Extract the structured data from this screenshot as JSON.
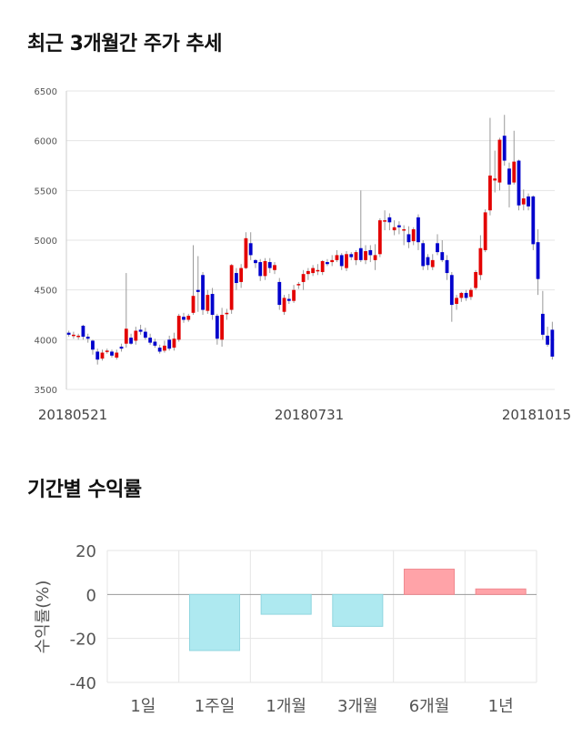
{
  "titles": {
    "candle": "최근 3개월간 주가 추세",
    "returns": "기간별 수익률"
  },
  "colors": {
    "up": "#e30000",
    "down": "#0000cc",
    "grid": "#e5e5e5",
    "positive_bar": "#ffa3a8",
    "negative_bar": "#aee9f0"
  },
  "chart_data": [
    {
      "type": "candlestick",
      "title": "최근 3개월간 주가 추세",
      "ylim": [
        3500,
        6500
      ],
      "yticks": [
        3500,
        4000,
        4500,
        5000,
        5500,
        6000,
        6500
      ],
      "date_labels": [
        "20180521",
        "20180731",
        "20181015"
      ],
      "grid": true,
      "candles": [
        [
          4070,
          4050,
          4090,
          4030
        ],
        [
          4040,
          4050,
          4080,
          4010
        ],
        [
          4030,
          4040,
          4060,
          4000
        ],
        [
          4140,
          4030,
          4150,
          4000
        ],
        [
          4030,
          4010,
          4060,
          3970
        ],
        [
          3990,
          3900,
          4000,
          3850
        ],
        [
          3880,
          3800,
          3910,
          3750
        ],
        [
          3810,
          3870,
          3900,
          3790
        ],
        [
          3880,
          3890,
          3910,
          3860
        ],
        [
          3880,
          3840,
          3900,
          3820
        ],
        [
          3820,
          3870,
          3900,
          3800
        ],
        [
          3930,
          3910,
          3960,
          3880
        ],
        [
          3960,
          4110,
          4670,
          3920
        ],
        [
          4020,
          3960,
          4060,
          3950
        ],
        [
          3990,
          4090,
          4130,
          3950
        ],
        [
          4100,
          4080,
          4150,
          4050
        ],
        [
          4080,
          4020,
          4120,
          4000
        ],
        [
          4020,
          3970,
          4060,
          3950
        ],
        [
          3980,
          3940,
          4010,
          3920
        ],
        [
          3920,
          3880,
          3950,
          3860
        ],
        [
          3890,
          3940,
          3990,
          3870
        ],
        [
          4000,
          3910,
          4040,
          3890
        ],
        [
          3920,
          4010,
          4070,
          3890
        ],
        [
          4000,
          4240,
          4260,
          3980
        ],
        [
          4230,
          4200,
          4270,
          4170
        ],
        [
          4200,
          4240,
          4260,
          4180
        ],
        [
          4270,
          4440,
          4950,
          4250
        ],
        [
          4500,
          4480,
          4840,
          4280
        ],
        [
          4650,
          4300,
          4680,
          4250
        ],
        [
          4290,
          4450,
          4500,
          4260
        ],
        [
          4460,
          4250,
          4520,
          4200
        ],
        [
          4240,
          4010,
          4260,
          3950
        ],
        [
          4000,
          4250,
          4320,
          3930
        ],
        [
          4260,
          4270,
          4310,
          4200
        ],
        [
          4300,
          4750,
          4760,
          4260
        ],
        [
          4670,
          4570,
          4720,
          4500
        ],
        [
          4580,
          4720,
          4760,
          4520
        ],
        [
          4720,
          5020,
          5080,
          4710
        ],
        [
          4970,
          4850,
          5080,
          4800
        ],
        [
          4800,
          4770,
          4810,
          4720
        ],
        [
          4780,
          4640,
          4810,
          4590
        ],
        [
          4640,
          4790,
          4820,
          4600
        ],
        [
          4780,
          4720,
          4820,
          4670
        ],
        [
          4700,
          4750,
          4780,
          4660
        ],
        [
          4580,
          4350,
          4620,
          4300
        ],
        [
          4280,
          4420,
          4450,
          4250
        ],
        [
          4410,
          4390,
          4460,
          4360
        ],
        [
          4390,
          4500,
          4550,
          4370
        ],
        [
          4550,
          4560,
          4580,
          4510
        ],
        [
          4580,
          4660,
          4700,
          4500
        ],
        [
          4660,
          4690,
          4720,
          4600
        ],
        [
          4670,
          4720,
          4750,
          4640
        ],
        [
          4700,
          4700,
          4760,
          4650
        ],
        [
          4680,
          4790,
          4800,
          4650
        ],
        [
          4780,
          4760,
          4810,
          4740
        ],
        [
          4780,
          4800,
          4850,
          4740
        ],
        [
          4800,
          4850,
          4900,
          4780
        ],
        [
          4850,
          4740,
          4870,
          4700
        ],
        [
          4720,
          4860,
          4890,
          4690
        ],
        [
          4860,
          4830,
          4880,
          4800
        ],
        [
          4800,
          4880,
          4900,
          4750
        ],
        [
          4920,
          4800,
          5500,
          4780
        ],
        [
          4800,
          4890,
          4950,
          4760
        ],
        [
          4900,
          4850,
          4950,
          4780
        ],
        [
          4800,
          4850,
          4960,
          4700
        ],
        [
          4860,
          5200,
          5220,
          4830
        ],
        [
          5200,
          5200,
          5300,
          5100
        ],
        [
          5230,
          5180,
          5270,
          5100
        ],
        [
          5100,
          5130,
          5200,
          5050
        ],
        [
          5150,
          5130,
          5190,
          5060
        ],
        [
          5110,
          5110,
          5150,
          4950
        ],
        [
          5060,
          4980,
          5140,
          4920
        ],
        [
          4990,
          5110,
          5130,
          4950
        ],
        [
          5230,
          4980,
          5260,
          4900
        ],
        [
          4970,
          4740,
          5000,
          4700
        ],
        [
          4830,
          4750,
          4860,
          4700
        ],
        [
          4730,
          4800,
          4860,
          4700
        ],
        [
          4970,
          4880,
          5060,
          4850
        ],
        [
          4880,
          4800,
          5000,
          4780
        ],
        [
          4800,
          4670,
          4850,
          4600
        ],
        [
          4650,
          4350,
          4680,
          4180
        ],
        [
          4360,
          4420,
          4450,
          4300
        ],
        [
          4420,
          4470,
          4480,
          4380
        ],
        [
          4470,
          4420,
          4500,
          4390
        ],
        [
          4430,
          4500,
          4520,
          4400
        ],
        [
          4520,
          4680,
          4700,
          4500
        ],
        [
          4650,
          4920,
          5050,
          4600
        ],
        [
          4900,
          5280,
          5310,
          4880
        ],
        [
          5300,
          5650,
          6230,
          5250
        ],
        [
          5600,
          5620,
          5900,
          5480
        ],
        [
          5580,
          6010,
          6030,
          5500
        ],
        [
          6050,
          5800,
          6260,
          5750
        ],
        [
          5720,
          5560,
          5780,
          5330
        ],
        [
          5580,
          5790,
          6100,
          5560
        ],
        [
          5800,
          5350,
          5810,
          5300
        ],
        [
          5360,
          5420,
          5510,
          5300
        ],
        [
          5440,
          5340,
          5470,
          5300
        ],
        [
          5440,
          4960,
          5450,
          4900
        ],
        [
          4980,
          4610,
          5110,
          4450
        ],
        [
          4260,
          4050,
          4490,
          4000
        ],
        [
          4040,
          3950,
          4130,
          3930
        ],
        [
          4100,
          3830,
          4180,
          3800
        ]
      ]
    },
    {
      "type": "bar",
      "title": "기간별 수익률",
      "ylabel": "수익률(%)",
      "ylim": [
        -40,
        20
      ],
      "yticks": [
        20,
        0,
        -20,
        -40
      ],
      "categories": [
        "1일",
        "1주일",
        "1개월",
        "3개월",
        "6개월",
        "1년"
      ],
      "values": [
        0,
        -25.5,
        -9.0,
        -14.5,
        11.5,
        2.5
      ],
      "grid": true
    }
  ]
}
